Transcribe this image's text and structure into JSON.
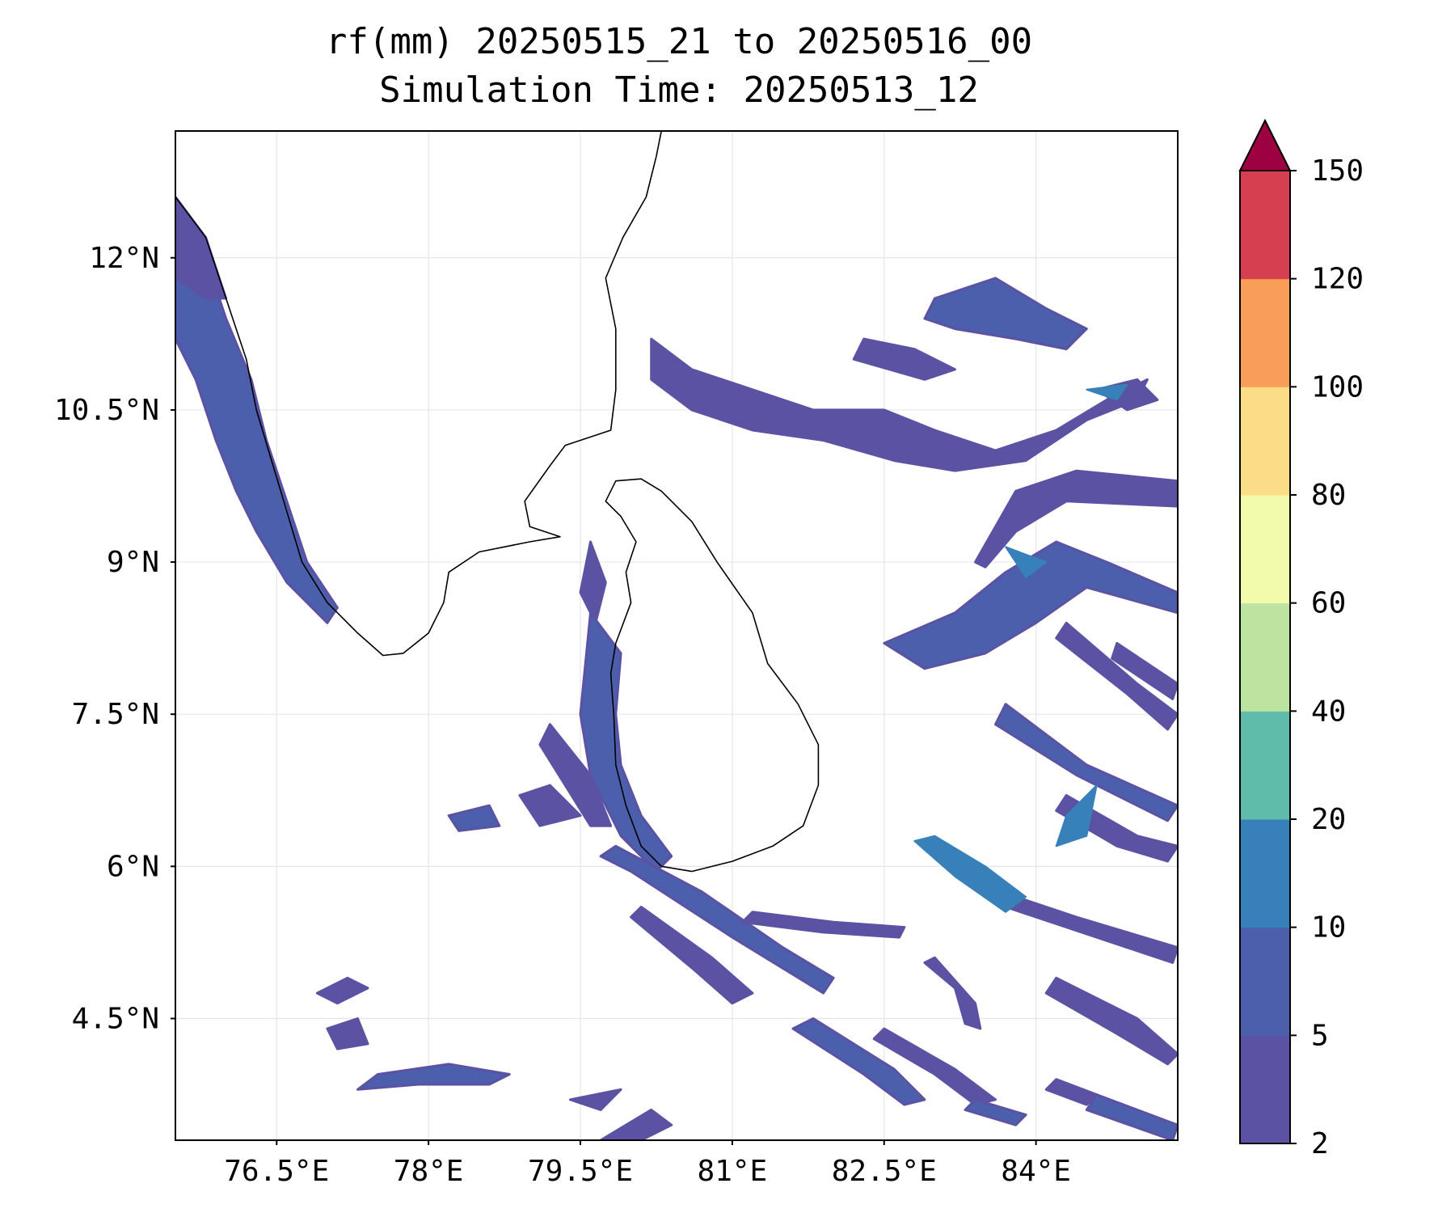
{
  "title": {
    "line1": "rf(mm) 20250515_21 to 20250516_00",
    "line2": "Simulation Time: 20250513_12"
  },
  "map": {
    "lon_range": [
      75.5,
      85.4
    ],
    "lat_range": [
      3.3,
      13.25
    ],
    "x_ticks": [
      {
        "value": 76.5,
        "label": "76.5°E"
      },
      {
        "value": 78.0,
        "label": "78°E"
      },
      {
        "value": 79.5,
        "label": "79.5°E"
      },
      {
        "value": 81.0,
        "label": "81°E"
      },
      {
        "value": 82.5,
        "label": "82.5°E"
      },
      {
        "value": 84.0,
        "label": "84°E"
      }
    ],
    "y_ticks": [
      {
        "value": 12.0,
        "label": "12°N"
      },
      {
        "value": 10.5,
        "label": "10.5°N"
      },
      {
        "value": 9.0,
        "label": "9°N"
      },
      {
        "value": 7.5,
        "label": "7.5°N"
      },
      {
        "value": 6.0,
        "label": "6°N"
      },
      {
        "value": 4.5,
        "label": "4.5°N"
      }
    ],
    "grid": true,
    "colors": {
      "rain_2_5": "#5b52a3",
      "rain_5_10": "#4b5fad",
      "rain_10_20": "#3880ba",
      "coast": "#000000",
      "grid": "#e6e6e6"
    },
    "coast_india_west": [
      [
        75.5,
        12.6
      ],
      [
        75.8,
        12.2
      ],
      [
        76.0,
        11.6
      ],
      [
        76.2,
        11.0
      ],
      [
        76.3,
        10.5
      ],
      [
        76.45,
        10.0
      ],
      [
        76.6,
        9.5
      ],
      [
        76.75,
        9.0
      ],
      [
        77.0,
        8.6
      ],
      [
        77.3,
        8.3
      ],
      [
        77.55,
        8.08
      ],
      [
        77.75,
        8.1
      ],
      [
        78.0,
        8.3
      ],
      [
        78.15,
        8.6
      ],
      [
        78.2,
        8.9
      ],
      [
        78.5,
        9.1
      ],
      [
        79.0,
        9.2
      ],
      [
        79.3,
        9.25
      ],
      [
        79.0,
        9.35
      ],
      [
        78.95,
        9.6
      ],
      [
        79.2,
        9.95
      ],
      [
        79.35,
        10.15
      ],
      [
        79.8,
        10.3
      ],
      [
        79.85,
        10.7
      ],
      [
        79.85,
        11.3
      ],
      [
        79.75,
        11.8
      ],
      [
        79.92,
        12.2
      ],
      [
        80.15,
        12.6
      ],
      [
        80.25,
        13.0
      ],
      [
        80.3,
        13.25
      ]
    ],
    "coast_sri_lanka": [
      [
        79.85,
        9.8
      ],
      [
        80.1,
        9.82
      ],
      [
        80.3,
        9.7
      ],
      [
        80.6,
        9.4
      ],
      [
        80.85,
        9.0
      ],
      [
        81.2,
        8.5
      ],
      [
        81.35,
        8.0
      ],
      [
        81.65,
        7.6
      ],
      [
        81.85,
        7.2
      ],
      [
        81.85,
        6.8
      ],
      [
        81.7,
        6.4
      ],
      [
        81.4,
        6.2
      ],
      [
        81.0,
        6.05
      ],
      [
        80.6,
        5.95
      ],
      [
        80.3,
        6.0
      ],
      [
        80.1,
        6.2
      ],
      [
        79.95,
        6.6
      ],
      [
        79.85,
        7.0
      ],
      [
        79.83,
        7.5
      ],
      [
        79.8,
        7.9
      ],
      [
        79.85,
        8.2
      ],
      [
        80.0,
        8.6
      ],
      [
        79.95,
        8.9
      ],
      [
        80.05,
        9.2
      ],
      [
        79.9,
        9.45
      ],
      [
        79.75,
        9.6
      ],
      [
        79.85,
        9.8
      ]
    ],
    "rain_low": [
      [
        [
          75.5,
          12.3
        ],
        [
          75.8,
          12.0
        ],
        [
          76.0,
          11.4
        ],
        [
          76.25,
          10.8
        ],
        [
          76.4,
          10.2
        ],
        [
          76.6,
          9.6
        ],
        [
          76.8,
          9.0
        ],
        [
          77.1,
          8.55
        ],
        [
          77.0,
          8.4
        ],
        [
          76.6,
          8.8
        ],
        [
          76.3,
          9.3
        ],
        [
          76.1,
          9.7
        ],
        [
          75.9,
          10.2
        ],
        [
          75.7,
          10.8
        ],
        [
          75.5,
          11.2
        ]
      ],
      [
        [
          75.5,
          12.6
        ],
        [
          75.8,
          12.2
        ],
        [
          76.0,
          11.6
        ],
        [
          75.8,
          11.6
        ],
        [
          75.5,
          11.8
        ]
      ],
      [
        [
          79.6,
          9.2
        ],
        [
          79.75,
          8.8
        ],
        [
          79.65,
          8.4
        ],
        [
          79.5,
          8.7
        ]
      ],
      [
        [
          79.6,
          8.5
        ],
        [
          79.9,
          8.1
        ],
        [
          79.85,
          7.5
        ],
        [
          79.9,
          7.0
        ],
        [
          80.1,
          6.5
        ],
        [
          80.4,
          6.1
        ],
        [
          80.25,
          5.95
        ],
        [
          79.9,
          6.3
        ],
        [
          79.6,
          6.9
        ],
        [
          79.5,
          7.5
        ]
      ],
      [
        [
          79.2,
          7.4
        ],
        [
          79.6,
          6.9
        ],
        [
          79.8,
          6.4
        ],
        [
          79.6,
          6.4
        ],
        [
          79.1,
          7.2
        ]
      ],
      [
        [
          78.9,
          6.7
        ],
        [
          79.2,
          6.8
        ],
        [
          79.5,
          6.5
        ],
        [
          79.1,
          6.4
        ]
      ],
      [
        [
          79.85,
          6.2
        ],
        [
          80.7,
          5.75
        ],
        [
          81.5,
          5.2
        ],
        [
          82.0,
          4.9
        ],
        [
          81.9,
          4.75
        ],
        [
          81.0,
          5.3
        ],
        [
          80.0,
          5.95
        ],
        [
          79.7,
          6.1
        ]
      ],
      [
        [
          80.1,
          5.6
        ],
        [
          80.8,
          5.1
        ],
        [
          81.2,
          4.75
        ],
        [
          81.0,
          4.65
        ],
        [
          80.6,
          5.0
        ],
        [
          80.0,
          5.5
        ]
      ],
      [
        [
          81.2,
          5.55
        ],
        [
          82.0,
          5.45
        ],
        [
          82.7,
          5.4
        ],
        [
          82.65,
          5.3
        ],
        [
          81.9,
          5.35
        ],
        [
          81.1,
          5.45
        ]
      ],
      [
        [
          81.8,
          4.5
        ],
        [
          82.6,
          4.0
        ],
        [
          82.9,
          3.7
        ],
        [
          82.7,
          3.65
        ],
        [
          82.3,
          3.95
        ],
        [
          81.6,
          4.4
        ]
      ],
      [
        [
          82.5,
          4.4
        ],
        [
          83.2,
          4.0
        ],
        [
          83.6,
          3.7
        ],
        [
          83.4,
          3.65
        ],
        [
          83.0,
          3.95
        ],
        [
          82.4,
          4.3
        ]
      ],
      [
        [
          83.0,
          5.1
        ],
        [
          83.4,
          4.65
        ],
        [
          83.45,
          4.4
        ],
        [
          83.3,
          4.45
        ],
        [
          83.2,
          4.8
        ],
        [
          82.9,
          5.05
        ]
      ],
      [
        [
          83.4,
          3.7
        ],
        [
          83.9,
          3.55
        ],
        [
          83.8,
          3.45
        ],
        [
          83.3,
          3.6
        ]
      ],
      [
        [
          84.2,
          4.9
        ],
        [
          85.0,
          4.5
        ],
        [
          85.4,
          4.15
        ],
        [
          85.3,
          4.05
        ],
        [
          84.8,
          4.35
        ],
        [
          84.1,
          4.75
        ]
      ],
      [
        [
          84.2,
          3.9
        ],
        [
          84.6,
          3.75
        ],
        [
          84.5,
          3.65
        ],
        [
          84.1,
          3.8
        ]
      ],
      [
        [
          84.6,
          3.75
        ],
        [
          85.4,
          3.45
        ],
        [
          85.35,
          3.3
        ],
        [
          84.5,
          3.6
        ]
      ],
      [
        [
          83.8,
          5.7
        ],
        [
          84.4,
          5.5
        ],
        [
          85.4,
          5.2
        ],
        [
          85.35,
          5.05
        ],
        [
          84.3,
          5.4
        ],
        [
          83.7,
          5.6
        ]
      ],
      [
        [
          84.3,
          6.7
        ],
        [
          85.0,
          6.3
        ],
        [
          85.4,
          6.2
        ],
        [
          85.3,
          6.05
        ],
        [
          84.8,
          6.2
        ],
        [
          84.2,
          6.55
        ]
      ],
      [
        [
          83.7,
          7.6
        ],
        [
          84.5,
          7.0
        ],
        [
          85.4,
          6.6
        ],
        [
          85.3,
          6.45
        ],
        [
          84.4,
          6.9
        ],
        [
          83.6,
          7.4
        ]
      ],
      [
        [
          84.3,
          8.4
        ],
        [
          85.0,
          7.8
        ],
        [
          85.4,
          7.5
        ],
        [
          85.3,
          7.35
        ],
        [
          84.9,
          7.7
        ],
        [
          84.2,
          8.25
        ]
      ],
      [
        [
          84.8,
          8.2
        ],
        [
          85.4,
          7.8
        ],
        [
          85.35,
          7.65
        ],
        [
          84.75,
          8.05
        ]
      ],
      [
        [
          82.5,
          8.2
        ],
        [
          83.2,
          8.5
        ],
        [
          83.7,
          8.9
        ],
        [
          84.2,
          9.2
        ],
        [
          84.7,
          9.0
        ],
        [
          85.4,
          8.7
        ],
        [
          85.4,
          8.5
        ],
        [
          84.5,
          8.75
        ],
        [
          84.0,
          8.4
        ],
        [
          83.5,
          8.1
        ],
        [
          82.9,
          7.95
        ]
      ],
      [
        [
          83.4,
          9.0
        ],
        [
          83.8,
          9.7
        ],
        [
          84.4,
          9.9
        ],
        [
          85.4,
          9.8
        ],
        [
          85.4,
          9.55
        ],
        [
          84.3,
          9.6
        ],
        [
          83.8,
          9.3
        ],
        [
          83.5,
          8.95
        ]
      ],
      [
        [
          80.2,
          11.2
        ],
        [
          80.6,
          10.9
        ],
        [
          81.2,
          10.7
        ],
        [
          81.8,
          10.5
        ],
        [
          82.5,
          10.5
        ],
        [
          83.0,
          10.3
        ],
        [
          83.6,
          10.1
        ],
        [
          84.2,
          10.3
        ],
        [
          84.7,
          10.6
        ],
        [
          85.1,
          10.8
        ],
        [
          85.0,
          10.6
        ],
        [
          84.5,
          10.4
        ],
        [
          83.9,
          10.0
        ],
        [
          83.2,
          9.9
        ],
        [
          82.6,
          10.0
        ],
        [
          81.9,
          10.2
        ],
        [
          81.2,
          10.3
        ],
        [
          80.6,
          10.5
        ],
        [
          80.2,
          10.8
        ]
      ],
      [
        [
          83.0,
          11.6
        ],
        [
          83.6,
          11.8
        ],
        [
          84.1,
          11.5
        ],
        [
          84.5,
          11.3
        ],
        [
          84.3,
          11.1
        ],
        [
          83.8,
          11.2
        ],
        [
          83.2,
          11.3
        ],
        [
          82.9,
          11.4
        ]
      ],
      [
        [
          82.3,
          11.2
        ],
        [
          82.8,
          11.1
        ],
        [
          83.2,
          10.9
        ],
        [
          82.9,
          10.8
        ],
        [
          82.2,
          11.0
        ]
      ],
      [
        [
          84.6,
          10.7
        ],
        [
          85.0,
          10.8
        ],
        [
          85.2,
          10.6
        ],
        [
          84.9,
          10.5
        ]
      ],
      [
        [
          77.5,
          3.95
        ],
        [
          78.2,
          4.05
        ],
        [
          78.8,
          3.95
        ],
        [
          78.6,
          3.85
        ],
        [
          77.9,
          3.85
        ],
        [
          77.3,
          3.8
        ]
      ],
      [
        [
          77.0,
          4.4
        ],
        [
          77.3,
          4.5
        ],
        [
          77.4,
          4.25
        ],
        [
          77.1,
          4.2
        ]
      ],
      [
        [
          76.9,
          4.75
        ],
        [
          77.2,
          4.9
        ],
        [
          77.4,
          4.8
        ],
        [
          77.1,
          4.65
        ]
      ],
      [
        [
          78.2,
          6.5
        ],
        [
          78.6,
          6.6
        ],
        [
          78.7,
          6.4
        ],
        [
          78.3,
          6.35
        ]
      ],
      [
        [
          79.7,
          3.3
        ],
        [
          80.2,
          3.6
        ],
        [
          80.4,
          3.45
        ],
        [
          79.9,
          3.2
        ]
      ],
      [
        [
          79.4,
          3.7
        ],
        [
          79.9,
          3.8
        ],
        [
          79.7,
          3.6
        ]
      ]
    ],
    "rain_mid": [
      [
        [
          84.3,
          6.5
        ],
        [
          84.6,
          6.8
        ],
        [
          84.5,
          6.3
        ],
        [
          84.2,
          6.2
        ]
      ],
      [
        [
          83.0,
          6.3
        ],
        [
          83.5,
          6.0
        ],
        [
          83.9,
          5.7
        ],
        [
          83.7,
          5.55
        ],
        [
          83.2,
          5.9
        ],
        [
          82.8,
          6.25
        ]
      ],
      [
        [
          83.7,
          9.15
        ],
        [
          84.1,
          9.0
        ],
        [
          83.9,
          8.85
        ]
      ],
      [
        [
          84.5,
          10.7
        ],
        [
          84.9,
          10.75
        ],
        [
          84.8,
          10.6
        ]
      ]
    ]
  },
  "colorbar": {
    "bins": [
      {
        "from": 2,
        "to": 5,
        "color": "#5b52a3"
      },
      {
        "from": 5,
        "to": 10,
        "color": "#4b5fad"
      },
      {
        "from": 10,
        "to": 20,
        "color": "#3880ba"
      },
      {
        "from": 20,
        "to": 40,
        "color": "#5fbbaa"
      },
      {
        "from": 40,
        "to": 60,
        "color": "#bde3a1"
      },
      {
        "from": 60,
        "to": 80,
        "color": "#f2faac"
      },
      {
        "from": 80,
        "to": 100,
        "color": "#fbdc87"
      },
      {
        "from": 100,
        "to": 120,
        "color": "#f99e59"
      },
      {
        "from": 120,
        "to": 150,
        "color": "#d63f4f"
      }
    ],
    "extend_color": "#9e0142",
    "tick_labels": [
      "2",
      "5",
      "10",
      "20",
      "40",
      "60",
      "80",
      "100",
      "120",
      "150"
    ]
  }
}
